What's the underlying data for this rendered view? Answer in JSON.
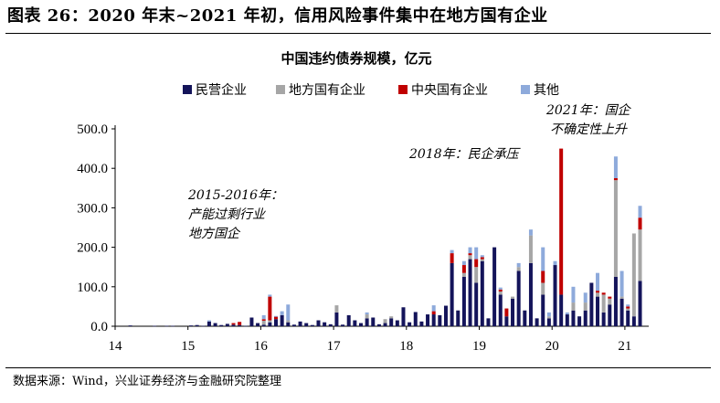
{
  "figure": {
    "title": "图表 26：2020 年末~2021 年初，信用风险事件集中在地方国有企业",
    "source": "数据来源：Wind，兴业证券经济与金融研究院整理"
  },
  "chart_data": {
    "type": "bar",
    "stacked": true,
    "title": "中国违约债券规模，亿元",
    "x_ticks": [
      "14",
      "15",
      "16",
      "17",
      "18",
      "19",
      "20",
      "21"
    ],
    "y_ticks": [
      "0.0",
      "100.0",
      "200.0",
      "300.0",
      "400.0",
      "500.0"
    ],
    "ylim": [
      0,
      500
    ],
    "legend_position": "top",
    "grid": false,
    "series": [
      {
        "name": "民营企业",
        "color": "#14145a"
      },
      {
        "name": "地方国有企业",
        "color": "#a6a6a6"
      },
      {
        "name": "中央国有企业",
        "color": "#c00000"
      },
      {
        "name": "其他",
        "color": "#8eaadb"
      }
    ],
    "months": [
      {
        "m": "2014-03",
        "v": [
          2,
          0,
          0,
          0
        ]
      },
      {
        "m": "2014-07",
        "v": [
          1,
          0,
          0,
          0
        ]
      },
      {
        "m": "2014-09",
        "v": [
          1,
          0,
          0,
          0
        ]
      },
      {
        "m": "2014-10",
        "v": [
          1,
          0,
          0,
          0
        ]
      },
      {
        "m": "2015-01",
        "v": [
          2,
          0,
          0,
          0
        ]
      },
      {
        "m": "2015-02",
        "v": [
          3,
          0,
          0,
          0
        ]
      },
      {
        "m": "2015-03",
        "v": [
          1,
          0,
          0,
          0
        ]
      },
      {
        "m": "2015-04",
        "v": [
          12,
          0,
          0,
          3
        ]
      },
      {
        "m": "2015-05",
        "v": [
          8,
          0,
          0,
          0
        ]
      },
      {
        "m": "2015-06",
        "v": [
          3,
          0,
          0,
          0
        ]
      },
      {
        "m": "2015-07",
        "v": [
          6,
          0,
          0,
          0
        ]
      },
      {
        "m": "2015-08",
        "v": [
          4,
          0,
          4,
          0
        ]
      },
      {
        "m": "2015-09",
        "v": [
          3,
          0,
          8,
          0
        ]
      },
      {
        "m": "2015-10",
        "v": [
          1,
          0,
          0,
          0
        ]
      },
      {
        "m": "2015-11",
        "v": [
          22,
          0,
          0,
          0
        ]
      },
      {
        "m": "2015-12",
        "v": [
          8,
          0,
          0,
          0
        ]
      },
      {
        "m": "2016-01",
        "v": [
          4,
          10,
          4,
          10
        ]
      },
      {
        "m": "2016-02",
        "v": [
          10,
          5,
          60,
          5
        ]
      },
      {
        "m": "2016-03",
        "v": [
          18,
          0,
          6,
          2
        ]
      },
      {
        "m": "2016-04",
        "v": [
          28,
          0,
          0,
          10
        ]
      },
      {
        "m": "2016-05",
        "v": [
          10,
          5,
          0,
          40
        ]
      },
      {
        "m": "2016-06",
        "v": [
          4,
          0,
          0,
          0
        ]
      },
      {
        "m": "2016-07",
        "v": [
          12,
          0,
          0,
          0
        ]
      },
      {
        "m": "2016-08",
        "v": [
          8,
          0,
          0,
          0
        ]
      },
      {
        "m": "2016-09",
        "v": [
          3,
          0,
          0,
          0
        ]
      },
      {
        "m": "2016-10",
        "v": [
          15,
          0,
          0,
          0
        ]
      },
      {
        "m": "2016-11",
        "v": [
          10,
          0,
          0,
          0
        ]
      },
      {
        "m": "2016-12",
        "v": [
          5,
          0,
          0,
          0
        ]
      },
      {
        "m": "2017-01",
        "v": [
          35,
          18,
          0,
          0
        ]
      },
      {
        "m": "2017-02",
        "v": [
          4,
          0,
          0,
          0
        ]
      },
      {
        "m": "2017-03",
        "v": [
          28,
          0,
          0,
          0
        ]
      },
      {
        "m": "2017-04",
        "v": [
          15,
          0,
          0,
          0
        ]
      },
      {
        "m": "2017-05",
        "v": [
          8,
          0,
          0,
          0
        ]
      },
      {
        "m": "2017-06",
        "v": [
          20,
          10,
          0,
          5
        ]
      },
      {
        "m": "2017-07",
        "v": [
          22,
          0,
          0,
          0
        ]
      },
      {
        "m": "2017-08",
        "v": [
          5,
          0,
          0,
          0
        ]
      },
      {
        "m": "2017-09",
        "v": [
          8,
          10,
          0,
          0
        ]
      },
      {
        "m": "2017-10",
        "v": [
          20,
          5,
          0,
          0
        ]
      },
      {
        "m": "2017-11",
        "v": [
          15,
          0,
          0,
          0
        ]
      },
      {
        "m": "2017-12",
        "v": [
          48,
          0,
          0,
          0
        ]
      },
      {
        "m": "2018-01",
        "v": [
          10,
          0,
          0,
          0
        ]
      },
      {
        "m": "2018-02",
        "v": [
          36,
          0,
          0,
          0
        ]
      },
      {
        "m": "2018-03",
        "v": [
          12,
          0,
          0,
          0
        ]
      },
      {
        "m": "2018-04",
        "v": [
          30,
          0,
          0,
          0
        ]
      },
      {
        "m": "2018-05",
        "v": [
          30,
          0,
          8,
          15
        ]
      },
      {
        "m": "2018-06",
        "v": [
          28,
          0,
          0,
          0
        ]
      },
      {
        "m": "2018-07",
        "v": [
          52,
          0,
          0,
          0
        ]
      },
      {
        "m": "2018-08",
        "v": [
          160,
          0,
          25,
          8
        ]
      },
      {
        "m": "2018-09",
        "v": [
          40,
          0,
          0,
          0
        ]
      },
      {
        "m": "2018-10",
        "v": [
          125,
          10,
          20,
          10
        ]
      },
      {
        "m": "2018-11",
        "v": [
          170,
          10,
          5,
          15
        ]
      },
      {
        "m": "2018-12",
        "v": [
          110,
          40,
          20,
          30
        ]
      },
      {
        "m": "2019-01",
        "v": [
          165,
          5,
          5,
          5
        ]
      },
      {
        "m": "2019-02",
        "v": [
          20,
          0,
          0,
          0
        ]
      },
      {
        "m": "2019-03",
        "v": [
          200,
          0,
          0,
          0
        ]
      },
      {
        "m": "2019-04",
        "v": [
          80,
          8,
          5,
          5
        ]
      },
      {
        "m": "2019-05",
        "v": [
          25,
          0,
          20,
          0
        ]
      },
      {
        "m": "2019-06",
        "v": [
          70,
          5,
          0,
          0
        ]
      },
      {
        "m": "2019-07",
        "v": [
          140,
          10,
          0,
          10
        ]
      },
      {
        "m": "2019-08",
        "v": [
          40,
          0,
          0,
          0
        ]
      },
      {
        "m": "2019-09",
        "v": [
          160,
          70,
          0,
          15
        ]
      },
      {
        "m": "2019-10",
        "v": [
          20,
          0,
          0,
          0
        ]
      },
      {
        "m": "2019-11",
        "v": [
          80,
          30,
          30,
          60
        ]
      },
      {
        "m": "2019-12",
        "v": [
          20,
          5,
          0,
          10
        ]
      },
      {
        "m": "2020-01",
        "v": [
          155,
          0,
          0,
          10
        ]
      },
      {
        "m": "2020-02",
        "v": [
          80,
          0,
          370,
          0
        ]
      },
      {
        "m": "2020-03",
        "v": [
          30,
          0,
          0,
          5
        ]
      },
      {
        "m": "2020-04",
        "v": [
          40,
          20,
          0,
          40
        ]
      },
      {
        "m": "2020-05",
        "v": [
          25,
          0,
          0,
          0
        ]
      },
      {
        "m": "2020-06",
        "v": [
          40,
          20,
          0,
          25
        ]
      },
      {
        "m": "2020-07",
        "v": [
          110,
          0,
          0,
          0
        ]
      },
      {
        "m": "2020-08",
        "v": [
          75,
          10,
          5,
          45
        ]
      },
      {
        "m": "2020-09",
        "v": [
          35,
          45,
          5,
          0
        ]
      },
      {
        "m": "2020-10",
        "v": [
          55,
          15,
          5,
          0
        ]
      },
      {
        "m": "2020-11",
        "v": [
          125,
          245,
          5,
          55
        ]
      },
      {
        "m": "2020-12",
        "v": [
          70,
          5,
          0,
          65
        ]
      },
      {
        "m": "2021-01",
        "v": [
          40,
          5,
          5,
          5
        ]
      },
      {
        "m": "2021-02",
        "v": [
          25,
          210,
          0,
          0
        ]
      },
      {
        "m": "2021-03",
        "v": [
          115,
          130,
          30,
          30
        ]
      }
    ],
    "annotations": [
      {
        "lines": [
          "2015-2016年：",
          "产能过剩行业",
          "地方国企"
        ]
      },
      {
        "lines": [
          "2018年：民企承压"
        ]
      },
      {
        "lines": [
          "2021年：国企",
          "不确定性上升"
        ]
      }
    ]
  }
}
